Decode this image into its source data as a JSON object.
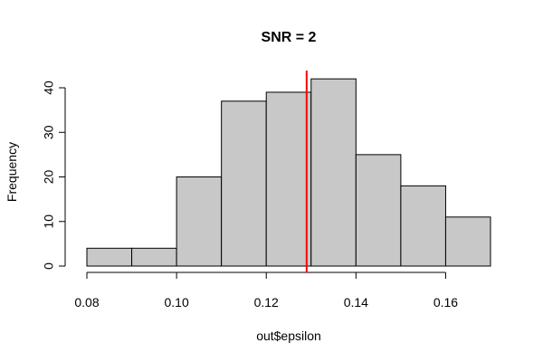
{
  "chart_data": {
    "type": "histogram",
    "title": "SNR = 2",
    "xlabel": "out$epsilon",
    "ylabel": "Frequency",
    "bins": [
      {
        "x0": 0.08,
        "x1": 0.09,
        "count": 4
      },
      {
        "x0": 0.09,
        "x1": 0.1,
        "count": 4
      },
      {
        "x0": 0.1,
        "x1": 0.11,
        "count": 20
      },
      {
        "x0": 0.11,
        "x1": 0.12,
        "count": 37
      },
      {
        "x0": 0.12,
        "x1": 0.13,
        "count": 39
      },
      {
        "x0": 0.13,
        "x1": 0.14,
        "count": 42
      },
      {
        "x0": 0.14,
        "x1": 0.15,
        "count": 25
      },
      {
        "x0": 0.15,
        "x1": 0.16,
        "count": 18
      },
      {
        "x0": 0.16,
        "x1": 0.17,
        "count": 11
      }
    ],
    "vertical_line": {
      "x": 0.129,
      "color": "#ff0000"
    },
    "xlim": [
      0.08,
      0.17
    ],
    "ylim": [
      0,
      42
    ],
    "x_ticks": [
      0.08,
      0.1,
      0.12,
      0.14,
      0.16
    ],
    "x_tick_labels": [
      "0.08",
      "0.10",
      "0.12",
      "0.14",
      "0.16"
    ],
    "y_ticks": [
      0,
      10,
      20,
      30,
      40
    ],
    "y_tick_labels": [
      "0",
      "10",
      "20",
      "30",
      "40"
    ],
    "bar_fill": "#c8c8c8",
    "bar_stroke": "#000000",
    "grid": false,
    "legend": false
  }
}
